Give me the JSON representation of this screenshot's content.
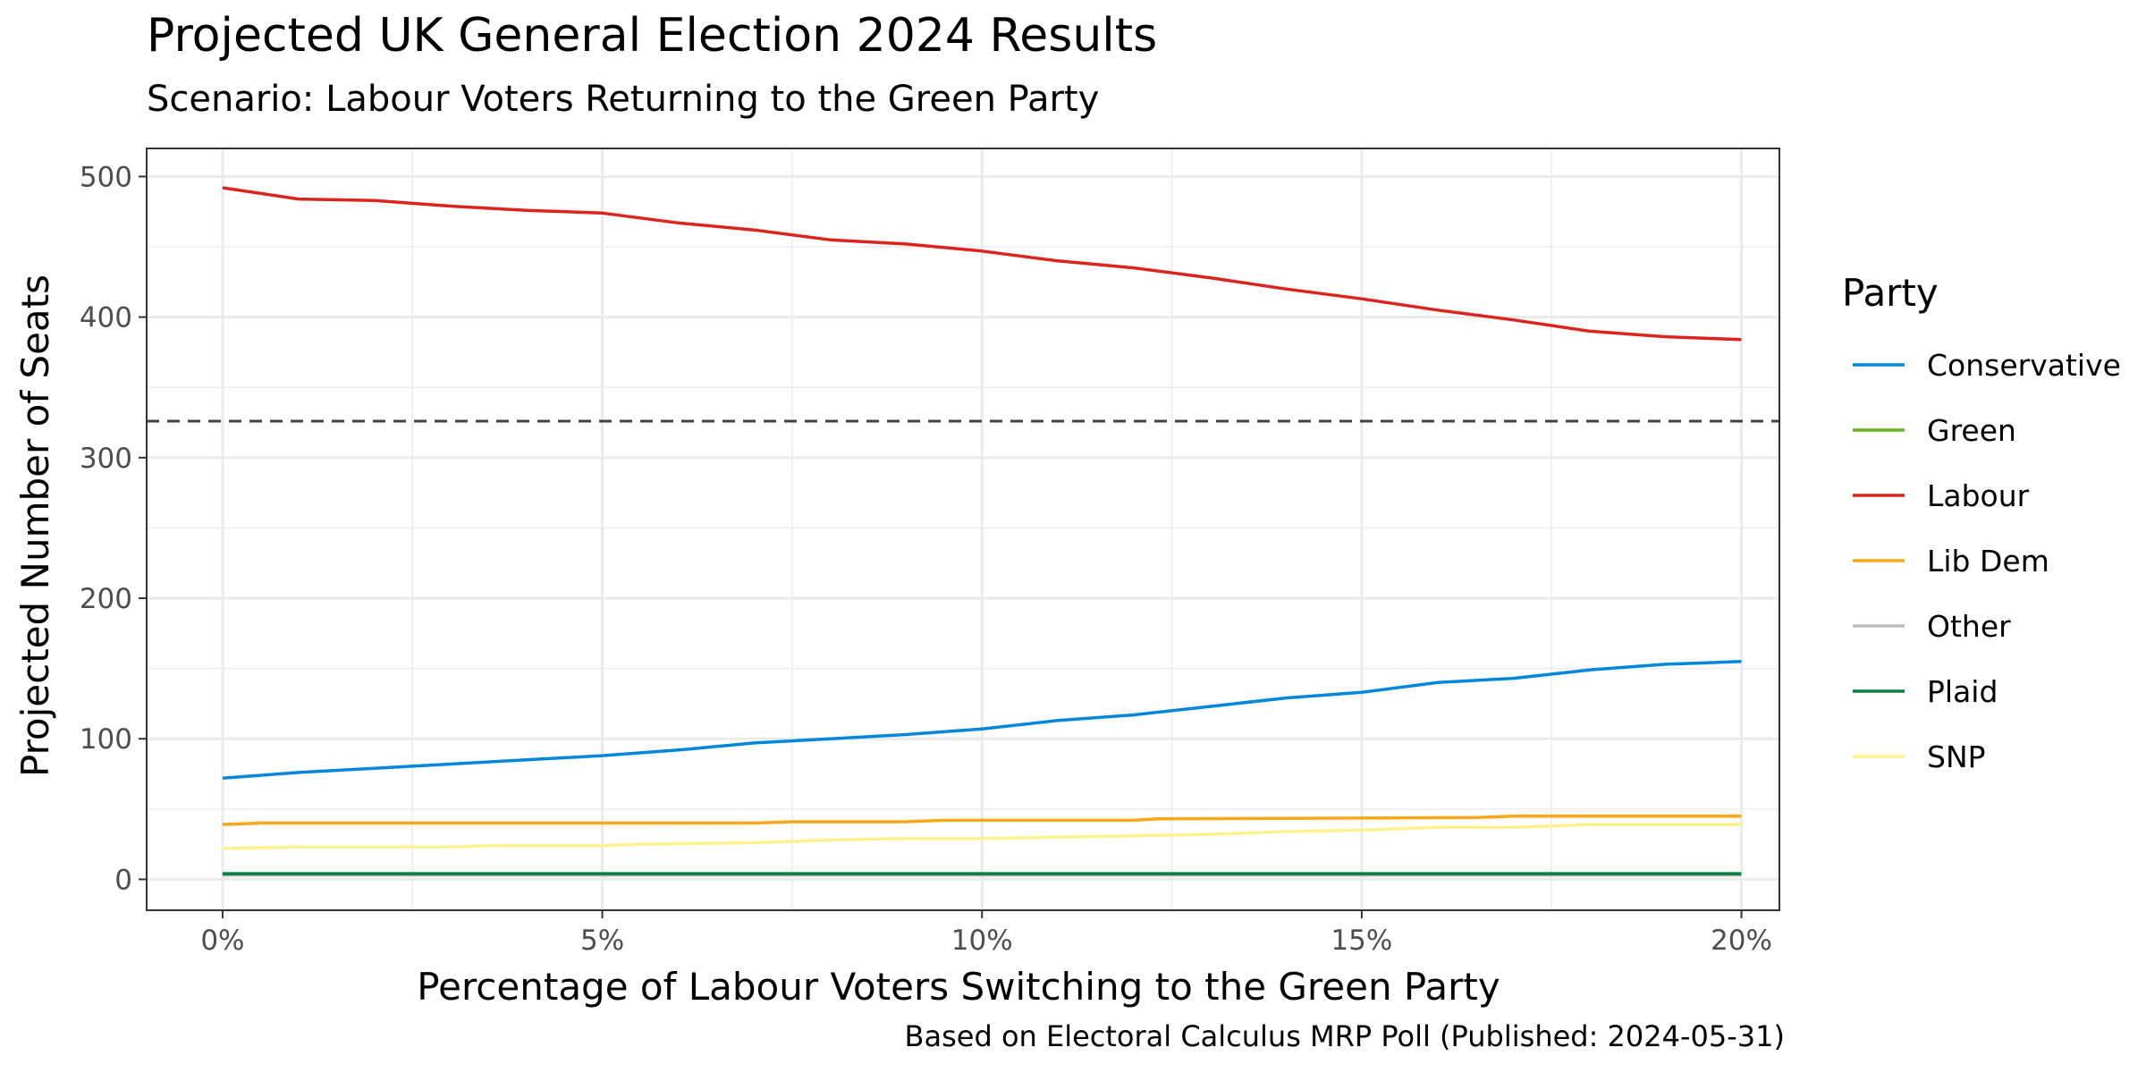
{
  "chart_data": {
    "type": "line",
    "title": "Projected UK General Election 2024 Results",
    "subtitle": "Scenario: Labour Voters Returning to the Green Party",
    "caption": "Based on Electoral Calculus MRP Poll (Published: 2024-05-31)",
    "xlabel": "Percentage of Labour Voters Switching to the Green Party",
    "ylabel": "Projected Number of Seats",
    "xlim": [
      -1,
      20.5
    ],
    "ylim": [
      -22,
      520
    ],
    "x_ticks": [
      0,
      5,
      10,
      15,
      20
    ],
    "x_tick_labels": [
      "0%",
      "5%",
      "10%",
      "15%",
      "20%"
    ],
    "y_ticks": [
      0,
      100,
      200,
      300,
      400,
      500
    ],
    "y_tick_labels": [
      "0",
      "100",
      "200",
      "300",
      "400",
      "500"
    ],
    "grid": true,
    "majority_line": {
      "y": 326,
      "style": "dashed",
      "color": "#404040"
    },
    "legend": {
      "title": "Party",
      "position": "right"
    },
    "series": [
      {
        "name": "Conservative",
        "color": "#0087DC",
        "points": [
          [
            0,
            72
          ],
          [
            1,
            76
          ],
          [
            2,
            79
          ],
          [
            3,
            82
          ],
          [
            4,
            85
          ],
          [
            5,
            88
          ],
          [
            6,
            92
          ],
          [
            7,
            97
          ],
          [
            8,
            100
          ],
          [
            9,
            103
          ],
          [
            10,
            107
          ],
          [
            11,
            113
          ],
          [
            12,
            117
          ],
          [
            13,
            123
          ],
          [
            14,
            129
          ],
          [
            15,
            133
          ],
          [
            16,
            140
          ],
          [
            17,
            143
          ],
          [
            18,
            149
          ],
          [
            19,
            153
          ],
          [
            20,
            155
          ]
        ]
      },
      {
        "name": "Green",
        "color": "#6AB023",
        "points": [
          [
            0,
            4
          ],
          [
            5,
            4
          ],
          [
            10,
            4
          ],
          [
            15,
            4
          ],
          [
            20,
            4
          ]
        ]
      },
      {
        "name": "Labour",
        "color": "#DC241F",
        "points": [
          [
            0,
            492
          ],
          [
            1,
            484
          ],
          [
            2,
            483
          ],
          [
            3,
            479
          ],
          [
            4,
            476
          ],
          [
            5,
            474
          ],
          [
            6,
            467
          ],
          [
            7,
            462
          ],
          [
            8,
            455
          ],
          [
            9,
            452
          ],
          [
            10,
            447
          ],
          [
            11,
            440
          ],
          [
            12,
            435
          ],
          [
            13,
            428
          ],
          [
            14,
            420
          ],
          [
            15,
            413
          ],
          [
            16,
            405
          ],
          [
            17,
            398
          ],
          [
            18,
            390
          ],
          [
            19,
            386
          ],
          [
            20,
            384
          ]
        ]
      },
      {
        "name": "Lib Dem",
        "color": "#FAA61A",
        "points": [
          [
            0,
            39
          ],
          [
            0.5,
            40
          ],
          [
            3,
            40
          ],
          [
            7,
            40
          ],
          [
            7.5,
            41
          ],
          [
            9,
            41
          ],
          [
            9.5,
            42
          ],
          [
            12,
            42
          ],
          [
            12.3,
            43
          ],
          [
            16.5,
            44
          ],
          [
            17,
            45
          ],
          [
            20,
            45
          ]
        ]
      },
      {
        "name": "Other",
        "color": "#BBBBBB",
        "points": [
          [
            0,
            3
          ],
          [
            5,
            3
          ],
          [
            10,
            3
          ],
          [
            15,
            3
          ],
          [
            20,
            3
          ]
        ]
      },
      {
        "name": "Plaid",
        "color": "#008142",
        "points": [
          [
            0,
            4
          ],
          [
            5,
            4
          ],
          [
            10,
            4
          ],
          [
            15,
            4
          ],
          [
            20,
            4
          ]
        ]
      },
      {
        "name": "SNP",
        "color": "#FDF38E",
        "points": [
          [
            0,
            22
          ],
          [
            1,
            23
          ],
          [
            3,
            23
          ],
          [
            3.5,
            24
          ],
          [
            5,
            24
          ],
          [
            5.5,
            25
          ],
          [
            7,
            26
          ],
          [
            8,
            28
          ],
          [
            9,
            29
          ],
          [
            10,
            29
          ],
          [
            11,
            30
          ],
          [
            12,
            31
          ],
          [
            13,
            32
          ],
          [
            14,
            34
          ],
          [
            15,
            35
          ],
          [
            16,
            37
          ],
          [
            17,
            37
          ],
          [
            17.5,
            38
          ],
          [
            18,
            39
          ],
          [
            20,
            39
          ]
        ]
      }
    ]
  }
}
